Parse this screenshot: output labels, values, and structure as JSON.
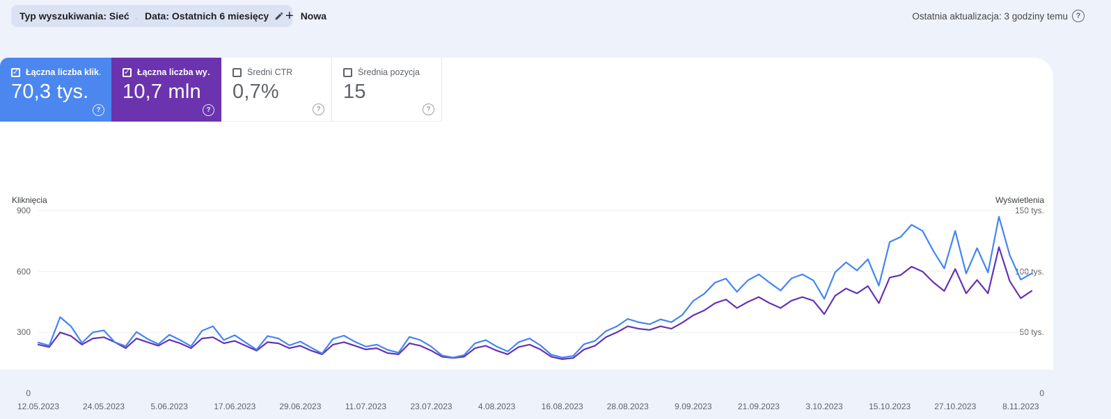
{
  "toolbar": {
    "chips": [
      {
        "label": "Typ wyszukiwania: Sieć"
      },
      {
        "label": "Data: Ostatnich 6 miesięcy"
      }
    ],
    "new_button": {
      "plus": "+",
      "label": "Nowa"
    },
    "last_update": "Ostatnia aktualizacja: 3 godziny temu",
    "help_icon": "?"
  },
  "metric_cards": [
    {
      "label": "Łączna liczba klik…",
      "value": "70,3 tys.",
      "checked": true,
      "bg": "#4b87ef",
      "help_icon": "?"
    },
    {
      "label": "Łączna liczba wy…",
      "value": "10,7 mln",
      "checked": true,
      "bg": "#6c33ae",
      "help_icon": "?"
    },
    {
      "label": "Średni CTR",
      "value": "0,7%",
      "checked": false,
      "bg": "#ffffff",
      "help_icon": "?"
    },
    {
      "label": "Średnia pozycja",
      "value": "15",
      "checked": false,
      "bg": "#ffffff",
      "help_icon": "?"
    }
  ],
  "chart_data": {
    "type": "line",
    "grid": true,
    "left_axis": {
      "title": "Kliknięcia",
      "ticks": [
        900,
        600,
        300,
        0
      ],
      "tick_labels": [
        "900",
        "600",
        "300",
        "0"
      ],
      "max": 900
    },
    "right_axis": {
      "title": "Wyświetlenia",
      "ticks": [
        150,
        100,
        50,
        0
      ],
      "tick_labels": [
        "150 tys.",
        "100 tys.",
        "50 tys.",
        "0"
      ],
      "max": 150,
      "unit": "tys."
    },
    "x_tick_labels": [
      "12.05.2023",
      "24.05.2023",
      "5.06.2023",
      "17.06.2023",
      "29.06.2023",
      "11.07.2023",
      "23.07.2023",
      "4.08.2023",
      "16.08.2023",
      "28.08.2023",
      "9.09.2023",
      "21.09.2023",
      "3.10.2023",
      "15.10.2023",
      "27.10.2023",
      "8.11.2023"
    ],
    "x_tick_day_offsets": [
      0,
      12,
      24,
      36,
      48,
      60,
      72,
      84,
      96,
      108,
      120,
      132,
      144,
      156,
      168,
      180
    ],
    "total_days": 182,
    "series": [
      {
        "name": "Kliknięcia",
        "axis": "left",
        "color": "#4385f3",
        "values": [
          250,
          235,
          375,
          330,
          248,
          300,
          310,
          252,
          232,
          302,
          268,
          242,
          288,
          262,
          232,
          308,
          330,
          262,
          286,
          250,
          215,
          282,
          270,
          236,
          255,
          225,
          196,
          268,
          284,
          254,
          230,
          240,
          214,
          200,
          278,
          262,
          230,
          186,
          176,
          188,
          246,
          262,
          230,
          206,
          252,
          270,
          236,
          190,
          176,
          184,
          242,
          258,
          306,
          330,
          366,
          350,
          340,
          364,
          350,
          386,
          455,
          490,
          545,
          565,
          500,
          556,
          586,
          545,
          506,
          566,
          586,
          556,
          465,
          596,
          645,
          605,
          660,
          530,
          745,
          770,
          830,
          800,
          700,
          615,
          800,
          590,
          715,
          595,
          870,
          680,
          560,
          590
        ]
      },
      {
        "name": "Wyświetlenia (tys.)",
        "axis": "right",
        "color": "#6432b4",
        "values": [
          40,
          38,
          50,
          47,
          40,
          45,
          46,
          42,
          37,
          45,
          42,
          39,
          44,
          41,
          37,
          45,
          46,
          41,
          43,
          39,
          35,
          42,
          41,
          37,
          39,
          35,
          32,
          40,
          42,
          39,
          36,
          37,
          33,
          32,
          41,
          39,
          35,
          30,
          29,
          30,
          37,
          39,
          35,
          32,
          38,
          40,
          36,
          30,
          28,
          29,
          36,
          39,
          46,
          50,
          55,
          53,
          52,
          55,
          53,
          58,
          64,
          68,
          74,
          77,
          70,
          75,
          79,
          74,
          70,
          76,
          79,
          76,
          65,
          80,
          86,
          82,
          88,
          74,
          95,
          97,
          104,
          100,
          91,
          84,
          102,
          82,
          93,
          82,
          120,
          92,
          78,
          84
        ]
      }
    ]
  }
}
